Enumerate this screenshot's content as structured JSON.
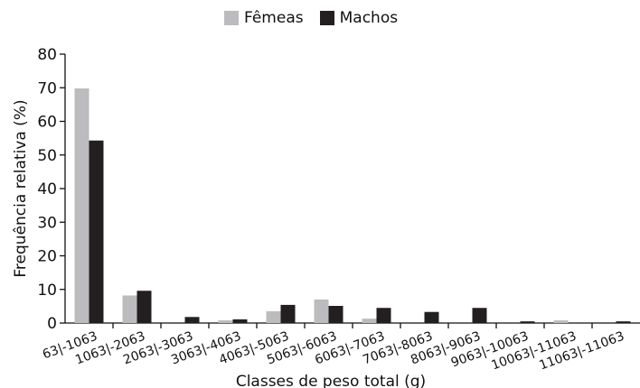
{
  "chart_data": {
    "type": "bar",
    "title": "",
    "xlabel": "Classes de peso total (g)",
    "ylabel": "Frequência relativa (%)",
    "ylim": [
      0,
      80
    ],
    "yticks": [
      0,
      10,
      20,
      30,
      40,
      50,
      60,
      70,
      80
    ],
    "grid": false,
    "legend_position": "top-center",
    "categories": [
      "63|-1063",
      "1063|-2063",
      "2063|-3063",
      "3063|-4063",
      "4063|-5063",
      "5063|-6063",
      "6063|-7063",
      "7063|-8063",
      "8063|-9063",
      "9063|-10063",
      "10063|-11063",
      "11063|-11063"
    ],
    "series": [
      {
        "name": "Fêmeas",
        "color": "#bcbcbf",
        "values": [
          69.8,
          8.2,
          0,
          0.8,
          3.5,
          7.0,
          1.3,
          0,
          0,
          0,
          0.8,
          0
        ]
      },
      {
        "name": "Machos",
        "color": "#231f20",
        "values": [
          54.3,
          9.6,
          1.8,
          1.1,
          5.4,
          5.1,
          4.5,
          3.3,
          4.5,
          0.5,
          0,
          0.5
        ]
      }
    ]
  }
}
